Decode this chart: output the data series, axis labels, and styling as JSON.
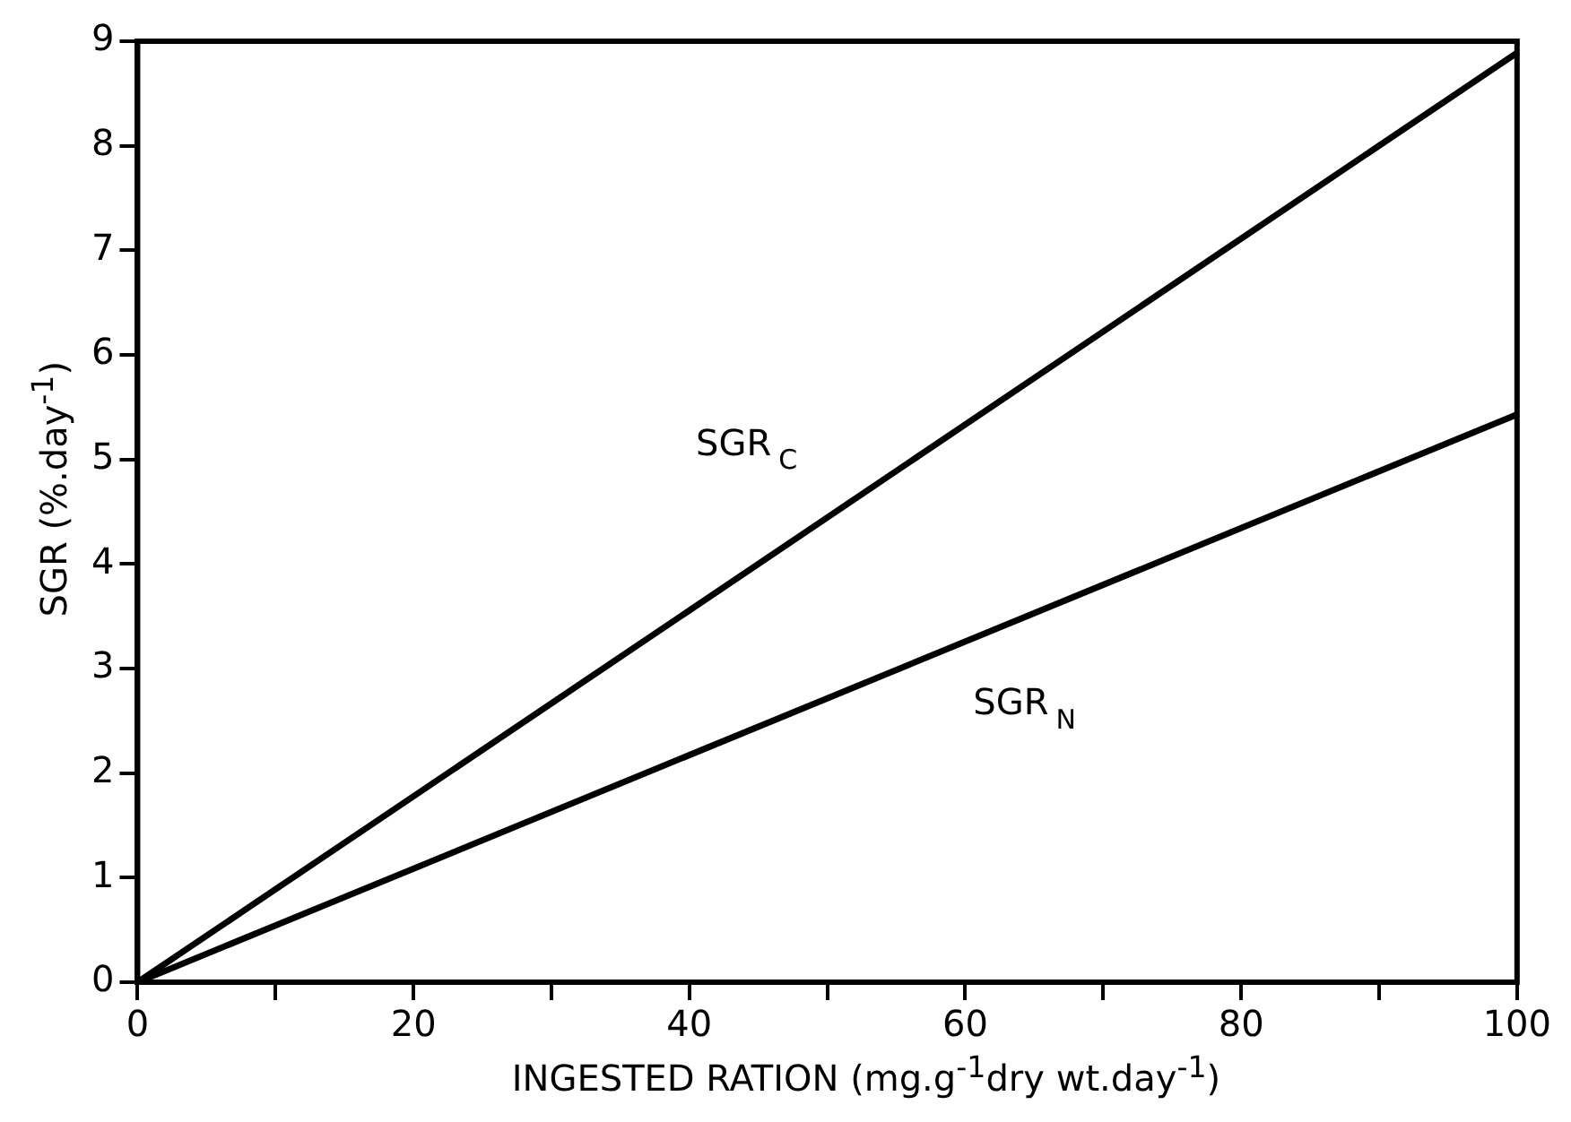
{
  "chart_data": {
    "type": "line",
    "xlabel": "INGESTED RATION (mg.g$^{-1}$dry wt.day$^{-1}$)",
    "ylabel": "SGR (%.day$^{-1}$)",
    "x": [
      0,
      100
    ],
    "series": [
      {
        "name": "SGR$_{C}$",
        "color": "#000000",
        "values": [
          0,
          8.89
        ]
      },
      {
        "name": "SGR$_{N}$",
        "color": "#000000",
        "values": [
          0,
          5.43
        ]
      }
    ],
    "xlim": [
      0,
      100
    ],
    "xticks": [
      0,
      {
        "value": 10,
        "label": null
      },
      20,
      {
        "value": 30,
        "label": null
      },
      40,
      {
        "value": 50,
        "label": null
      },
      60,
      {
        "value": 70,
        "label": null
      },
      80,
      {
        "value": 90,
        "label": null
      },
      100
    ],
    "ylim": [
      0,
      9
    ],
    "yticks": [
      0,
      1,
      2,
      3,
      4,
      5,
      6,
      7,
      8,
      9
    ],
    "grid": false,
    "legend": false,
    "marker": "none",
    "line_style": "solid"
  }
}
